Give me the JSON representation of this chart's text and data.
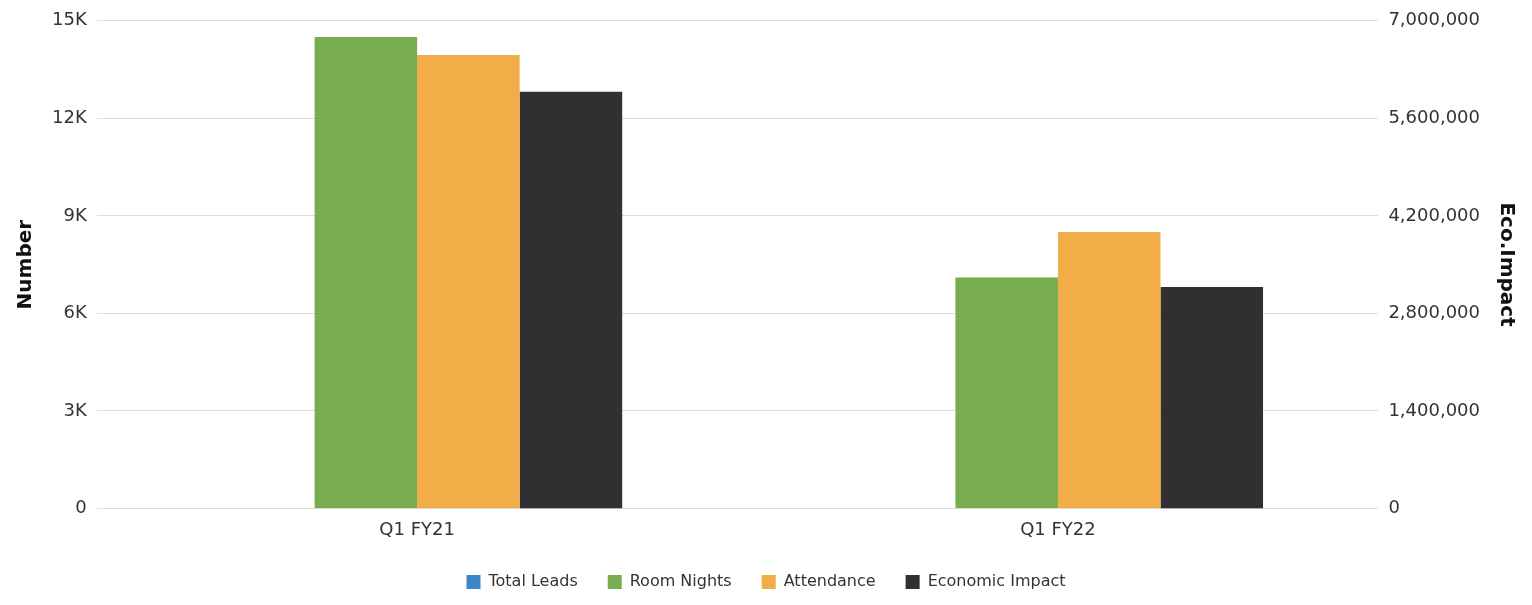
{
  "chart_data": {
    "type": "bar",
    "ylabel": "Number",
    "y2label": "Eco.Impact",
    "categories": [
      "Q1 FY21",
      "Q1 FY22"
    ],
    "series": [
      {
        "name": "Total Leads",
        "color": "#3a87c8",
        "values": [
          null,
          null
        ]
      },
      {
        "name": "Room Nights",
        "color": "#78ad4f",
        "values": [
          14500,
          7100
        ]
      },
      {
        "name": "Attendance",
        "color": "#f2ad48",
        "values": [
          13950,
          8500
        ]
      },
      {
        "name": "Economic Impact",
        "color": "#2f302f",
        "values": [
          5980000,
          3180000
        ],
        "axis": "y2"
      }
    ],
    "ylim": [
      0,
      15000
    ],
    "yticks": [
      0,
      {
        "value": 3000,
        "label": "3K"
      },
      {
        "value": 6000,
        "label": "6K"
      },
      {
        "value": 9000,
        "label": "9K"
      },
      {
        "value": 12000,
        "label": "12K"
      },
      {
        "value": 15000,
        "label": "15K"
      }
    ],
    "y2lim": [
      0,
      7000000
    ],
    "y2ticks": [
      {
        "value": 0,
        "label": "0"
      },
      {
        "value": 1400000,
        "label": "1,400,000"
      },
      {
        "value": 2800000,
        "label": "2,800,000"
      },
      {
        "value": 4200000,
        "label": "4,200,000"
      },
      {
        "value": 5600000,
        "label": "5,600,000"
      },
      {
        "value": 7000000,
        "label": "7,000,000"
      }
    ],
    "grid": "y",
    "legend": "bottom"
  }
}
